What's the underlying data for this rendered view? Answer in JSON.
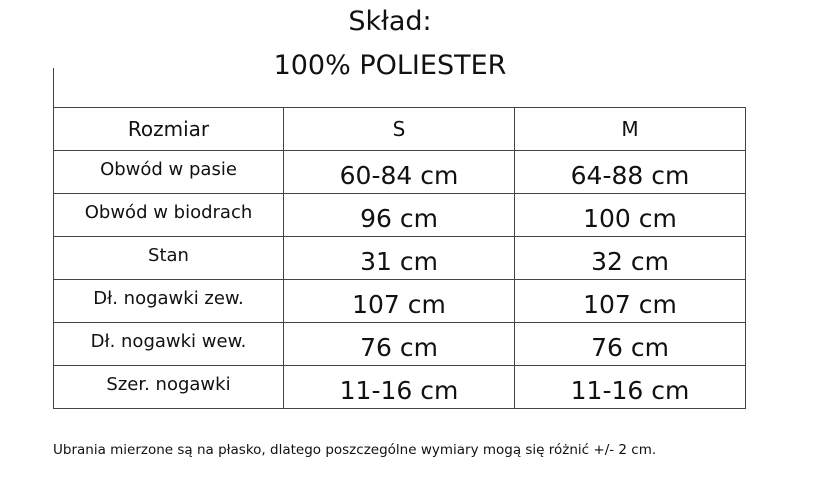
{
  "title": "Skład:",
  "material": "100% POLIESTER",
  "table": {
    "headers": [
      "Rozmiar",
      "S",
      "M"
    ],
    "rows": [
      {
        "label": "Obwód w pasie",
        "s": "60-84 cm",
        "m": "64-88 cm"
      },
      {
        "label": "Obwód w biodrach",
        "s": "96 cm",
        "m": "100 cm"
      },
      {
        "label": "Stan",
        "s": "31 cm",
        "m": "32 cm"
      },
      {
        "label": "Dł. nogawki zew.",
        "s": "107 cm",
        "m": "107 cm"
      },
      {
        "label": "Dł. nogawki wew.",
        "s": "76 cm",
        "m": "76 cm"
      },
      {
        "label": "Szer. nogawki",
        "s": "11-16 cm",
        "m": "11-16 cm"
      }
    ]
  },
  "note": "Ubrania mierzone są na płasko, dlatego poszczególne wymiary mogą się różnić +/- 2 cm."
}
